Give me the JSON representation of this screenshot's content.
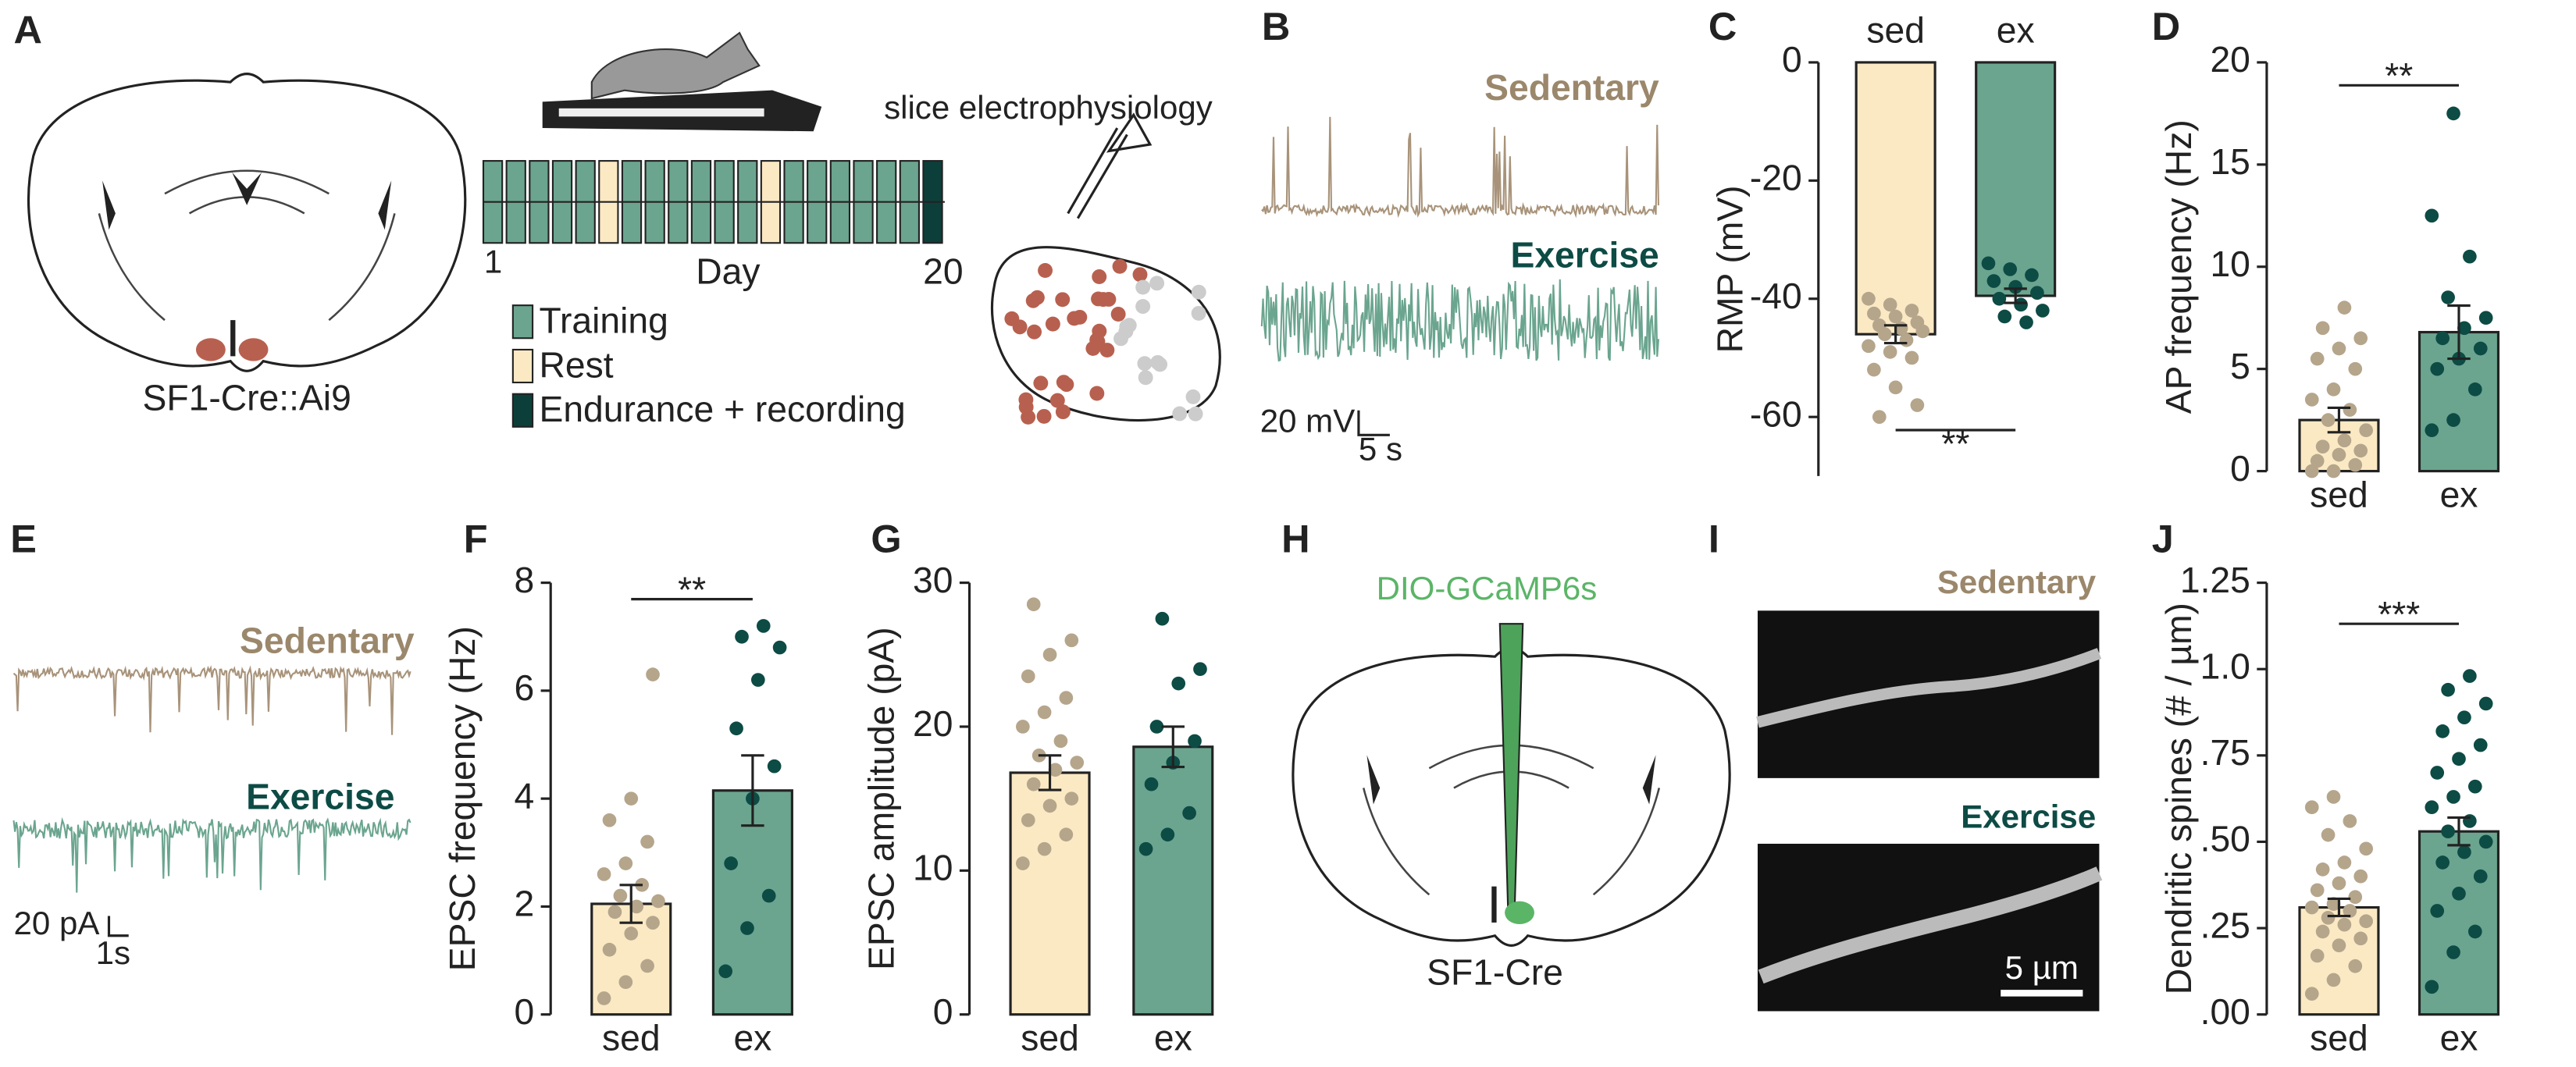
{
  "panel_labels": [
    "A",
    "B",
    "C",
    "D",
    "E",
    "F",
    "G",
    "H",
    "I",
    "J"
  ],
  "panel_a": {
    "brain_label": "SF1-Cre::Ai9",
    "protocol_caption": "slice electrophysiology",
    "day_axis": "Day",
    "day_start": 1,
    "day_end": 20,
    "legend": [
      "Training",
      "Rest",
      "Endurance + recording"
    ]
  },
  "panel_b": {
    "traces": [
      "Sedentary",
      "Exercise"
    ],
    "scale_v": "20 mV",
    "scale_t": "5 s"
  },
  "panel_e": {
    "traces": [
      "Sedentary",
      "Exercise"
    ],
    "scale_v": "20 pA",
    "scale_t": "1s"
  },
  "panel_h": {
    "virus": "DIO-GCaMP6s",
    "brain_label": "SF1-Cre"
  },
  "panel_i": {
    "images": [
      "Sedentary",
      "Exercise"
    ],
    "scale": "5 µm"
  },
  "chart_data": [
    {
      "type": "bar",
      "ylabel": "RMP (mV)",
      "categories": [
        "sed",
        "ex"
      ],
      "xaxis_position": "top",
      "values": [
        -46,
        -39.5
      ],
      "errors": [
        1.5,
        1.2
      ],
      "colors": [
        "#fbe9c4",
        "#6ba58f"
      ],
      "point_colors": [
        "#b5a58b",
        "#0d4b45"
      ],
      "points": [
        [
          -40,
          -41,
          -42,
          -42.5,
          -43,
          -44,
          -44.5,
          -45,
          -45.5,
          -46,
          -47,
          -48,
          -49,
          -50,
          -52,
          -55,
          -58,
          -60
        ],
        [
          -34,
          -35,
          -36,
          -37,
          -38,
          -39,
          -40,
          -41,
          -42,
          -43,
          -44
        ]
      ],
      "ylim": [
        -70,
        0
      ],
      "yticks": [
        0,
        -20,
        -40,
        -60
      ],
      "significance": "**"
    },
    {
      "type": "bar",
      "ylabel": "AP frequency (Hz)",
      "categories": [
        "sed",
        "ex"
      ],
      "xaxis_position": "bottom",
      "values": [
        2.5,
        6.8
      ],
      "errors": [
        0.6,
        1.3
      ],
      "colors": [
        "#fbe9c4",
        "#6ba58f"
      ],
      "point_colors": [
        "#b5a58b",
        "#0d4b45"
      ],
      "points": [
        [
          0,
          0,
          0.3,
          0.5,
          0.8,
          1,
          1.2,
          1.5,
          2,
          2.5,
          3,
          3.5,
          4,
          5,
          5.5,
          6,
          6.5,
          7,
          8
        ],
        [
          2,
          2.5,
          4,
          5,
          5.5,
          6,
          6.5,
          7,
          7.5,
          8.5,
          10.5,
          12.5,
          17.5
        ]
      ],
      "ylim": [
        0,
        20
      ],
      "yticks": [
        0,
        5,
        10,
        15,
        20
      ],
      "significance": "**"
    },
    {
      "type": "bar",
      "ylabel": "EPSC frequency (Hz)",
      "categories": [
        "sed",
        "ex"
      ],
      "xaxis_position": "bottom",
      "values": [
        2.05,
        4.15
      ],
      "errors": [
        0.35,
        0.65
      ],
      "colors": [
        "#fbe9c4",
        "#6ba58f"
      ],
      "point_colors": [
        "#b5a58b",
        "#0d4b45"
      ],
      "points": [
        [
          0.3,
          0.6,
          0.9,
          1.2,
          1.5,
          1.7,
          1.9,
          2,
          2.1,
          2.2,
          2.4,
          2.6,
          2.8,
          3.2,
          3.6,
          4,
          6.3
        ],
        [
          0.8,
          1.6,
          2.2,
          2.8,
          4,
          4.6,
          5.3,
          6.2,
          6.8,
          7,
          7.2
        ]
      ],
      "ylim": [
        0,
        8
      ],
      "yticks": [
        0,
        2,
        4,
        6,
        8
      ],
      "significance": "**"
    },
    {
      "type": "bar",
      "ylabel": "EPSC amplitude (pA)",
      "categories": [
        "sed",
        "ex"
      ],
      "xaxis_position": "bottom",
      "values": [
        16.8,
        18.6
      ],
      "errors": [
        1.2,
        1.4
      ],
      "colors": [
        "#fbe9c4",
        "#6ba58f"
      ],
      "point_colors": [
        "#b5a58b",
        "#0d4b45"
      ],
      "points": [
        [
          10.5,
          11.5,
          12.5,
          13.5,
          14.5,
          15,
          16,
          17,
          17.5,
          18,
          19,
          20,
          21,
          22,
          23.5,
          25,
          26,
          28.5
        ],
        [
          11.5,
          12.5,
          14,
          16,
          17.5,
          19,
          20,
          23,
          24,
          27.5
        ]
      ],
      "ylim": [
        0,
        30
      ],
      "yticks": [
        0,
        10,
        20,
        30
      ]
    },
    {
      "type": "bar",
      "ylabel": "Dendritic spines (# / µm)",
      "categories": [
        "sed",
        "ex"
      ],
      "xaxis_position": "bottom",
      "values": [
        0.31,
        0.53
      ],
      "errors": [
        0.025,
        0.04
      ],
      "colors": [
        "#fbe9c4",
        "#6ba58f"
      ],
      "point_colors": [
        "#b5a58b",
        "#0d4b45"
      ],
      "points": [
        [
          0.06,
          0.1,
          0.14,
          0.17,
          0.2,
          0.22,
          0.24,
          0.26,
          0.27,
          0.28,
          0.3,
          0.31,
          0.32,
          0.34,
          0.36,
          0.38,
          0.4,
          0.42,
          0.44,
          0.48,
          0.52,
          0.56,
          0.6,
          0.63
        ],
        [
          0.08,
          0.18,
          0.24,
          0.3,
          0.35,
          0.4,
          0.44,
          0.47,
          0.5,
          0.53,
          0.56,
          0.6,
          0.63,
          0.66,
          0.7,
          0.74,
          0.78,
          0.82,
          0.86,
          0.9,
          0.94,
          0.98
        ]
      ],
      "ylim": [
        0,
        1.25
      ],
      "yticks": [
        {
          "value": 0,
          "label": ".00"
        },
        {
          "value": 0.25,
          "label": ".25"
        },
        {
          "value": 0.5,
          "label": ".50"
        },
        {
          "value": 0.75,
          "label": ".75"
        },
        {
          "value": 1,
          "label": "1.0"
        },
        1.25
      ],
      "significance": "***"
    }
  ]
}
